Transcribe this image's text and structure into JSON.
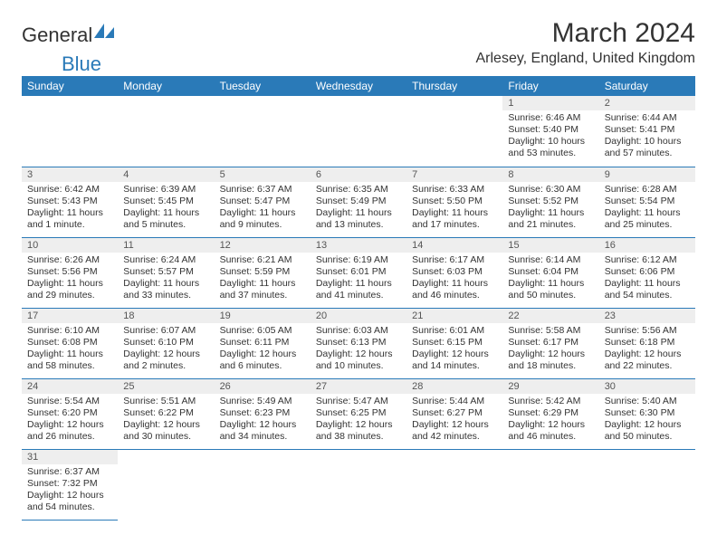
{
  "brand": {
    "part1": "General",
    "part2": "Blue",
    "icon_color": "#2a7ab8"
  },
  "title": "March 2024",
  "location": "Arlesey, England, United Kingdom",
  "theme": {
    "header_bg": "#2a7ab8",
    "header_fg": "#ffffff",
    "daynum_bg": "#eeeeee",
    "border_color": "#2a7ab8",
    "page_bg": "#ffffff",
    "text_color": "#333333"
  },
  "weekdays": [
    "Sunday",
    "Monday",
    "Tuesday",
    "Wednesday",
    "Thursday",
    "Friday",
    "Saturday"
  ],
  "leading_blanks": 5,
  "days": [
    {
      "n": 1,
      "sunrise": "6:46 AM",
      "sunset": "5:40 PM",
      "daylight": "10 hours and 53 minutes."
    },
    {
      "n": 2,
      "sunrise": "6:44 AM",
      "sunset": "5:41 PM",
      "daylight": "10 hours and 57 minutes."
    },
    {
      "n": 3,
      "sunrise": "6:42 AM",
      "sunset": "5:43 PM",
      "daylight": "11 hours and 1 minute."
    },
    {
      "n": 4,
      "sunrise": "6:39 AM",
      "sunset": "5:45 PM",
      "daylight": "11 hours and 5 minutes."
    },
    {
      "n": 5,
      "sunrise": "6:37 AM",
      "sunset": "5:47 PM",
      "daylight": "11 hours and 9 minutes."
    },
    {
      "n": 6,
      "sunrise": "6:35 AM",
      "sunset": "5:49 PM",
      "daylight": "11 hours and 13 minutes."
    },
    {
      "n": 7,
      "sunrise": "6:33 AM",
      "sunset": "5:50 PM",
      "daylight": "11 hours and 17 minutes."
    },
    {
      "n": 8,
      "sunrise": "6:30 AM",
      "sunset": "5:52 PM",
      "daylight": "11 hours and 21 minutes."
    },
    {
      "n": 9,
      "sunrise": "6:28 AM",
      "sunset": "5:54 PM",
      "daylight": "11 hours and 25 minutes."
    },
    {
      "n": 10,
      "sunrise": "6:26 AM",
      "sunset": "5:56 PM",
      "daylight": "11 hours and 29 minutes."
    },
    {
      "n": 11,
      "sunrise": "6:24 AM",
      "sunset": "5:57 PM",
      "daylight": "11 hours and 33 minutes."
    },
    {
      "n": 12,
      "sunrise": "6:21 AM",
      "sunset": "5:59 PM",
      "daylight": "11 hours and 37 minutes."
    },
    {
      "n": 13,
      "sunrise": "6:19 AM",
      "sunset": "6:01 PM",
      "daylight": "11 hours and 41 minutes."
    },
    {
      "n": 14,
      "sunrise": "6:17 AM",
      "sunset": "6:03 PM",
      "daylight": "11 hours and 46 minutes."
    },
    {
      "n": 15,
      "sunrise": "6:14 AM",
      "sunset": "6:04 PM",
      "daylight": "11 hours and 50 minutes."
    },
    {
      "n": 16,
      "sunrise": "6:12 AM",
      "sunset": "6:06 PM",
      "daylight": "11 hours and 54 minutes."
    },
    {
      "n": 17,
      "sunrise": "6:10 AM",
      "sunset": "6:08 PM",
      "daylight": "11 hours and 58 minutes."
    },
    {
      "n": 18,
      "sunrise": "6:07 AM",
      "sunset": "6:10 PM",
      "daylight": "12 hours and 2 minutes."
    },
    {
      "n": 19,
      "sunrise": "6:05 AM",
      "sunset": "6:11 PM",
      "daylight": "12 hours and 6 minutes."
    },
    {
      "n": 20,
      "sunrise": "6:03 AM",
      "sunset": "6:13 PM",
      "daylight": "12 hours and 10 minutes."
    },
    {
      "n": 21,
      "sunrise": "6:01 AM",
      "sunset": "6:15 PM",
      "daylight": "12 hours and 14 minutes."
    },
    {
      "n": 22,
      "sunrise": "5:58 AM",
      "sunset": "6:17 PM",
      "daylight": "12 hours and 18 minutes."
    },
    {
      "n": 23,
      "sunrise": "5:56 AM",
      "sunset": "6:18 PM",
      "daylight": "12 hours and 22 minutes."
    },
    {
      "n": 24,
      "sunrise": "5:54 AM",
      "sunset": "6:20 PM",
      "daylight": "12 hours and 26 minutes."
    },
    {
      "n": 25,
      "sunrise": "5:51 AM",
      "sunset": "6:22 PM",
      "daylight": "12 hours and 30 minutes."
    },
    {
      "n": 26,
      "sunrise": "5:49 AM",
      "sunset": "6:23 PM",
      "daylight": "12 hours and 34 minutes."
    },
    {
      "n": 27,
      "sunrise": "5:47 AM",
      "sunset": "6:25 PM",
      "daylight": "12 hours and 38 minutes."
    },
    {
      "n": 28,
      "sunrise": "5:44 AM",
      "sunset": "6:27 PM",
      "daylight": "12 hours and 42 minutes."
    },
    {
      "n": 29,
      "sunrise": "5:42 AM",
      "sunset": "6:29 PM",
      "daylight": "12 hours and 46 minutes."
    },
    {
      "n": 30,
      "sunrise": "5:40 AM",
      "sunset": "6:30 PM",
      "daylight": "12 hours and 50 minutes."
    },
    {
      "n": 31,
      "sunrise": "6:37 AM",
      "sunset": "7:32 PM",
      "daylight": "12 hours and 54 minutes."
    }
  ],
  "labels": {
    "sunrise": "Sunrise:",
    "sunset": "Sunset:",
    "daylight": "Daylight:"
  }
}
